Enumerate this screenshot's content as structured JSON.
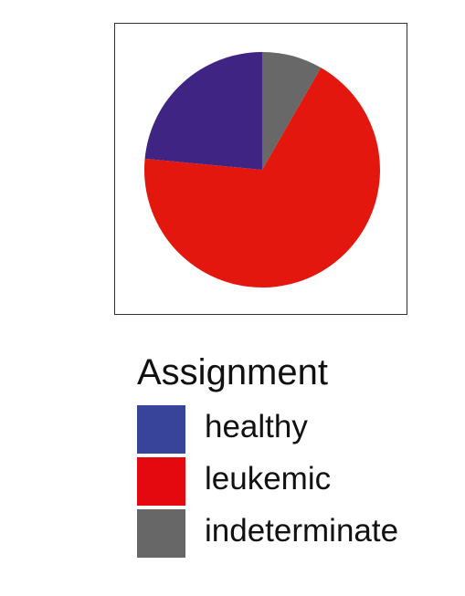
{
  "chart_data": {
    "type": "pie",
    "legend_title": "Assignment",
    "legend_position": "bottom",
    "start_angle_deg": 0,
    "direction": "clockwise",
    "slices": [
      {
        "label": "indeterminate",
        "value": 8.3,
        "color": "#686868"
      },
      {
        "label": "leukemic",
        "value": 68.2,
        "color": "#e3170e"
      },
      {
        "label": "healthy",
        "value": 23.5,
        "color": "#3f2484"
      }
    ],
    "legend": [
      {
        "label": "healthy",
        "color": "#37449a"
      },
      {
        "label": "leukemic",
        "color": "#e3090f"
      },
      {
        "label": "indeterminate",
        "color": "#676767"
      }
    ]
  }
}
